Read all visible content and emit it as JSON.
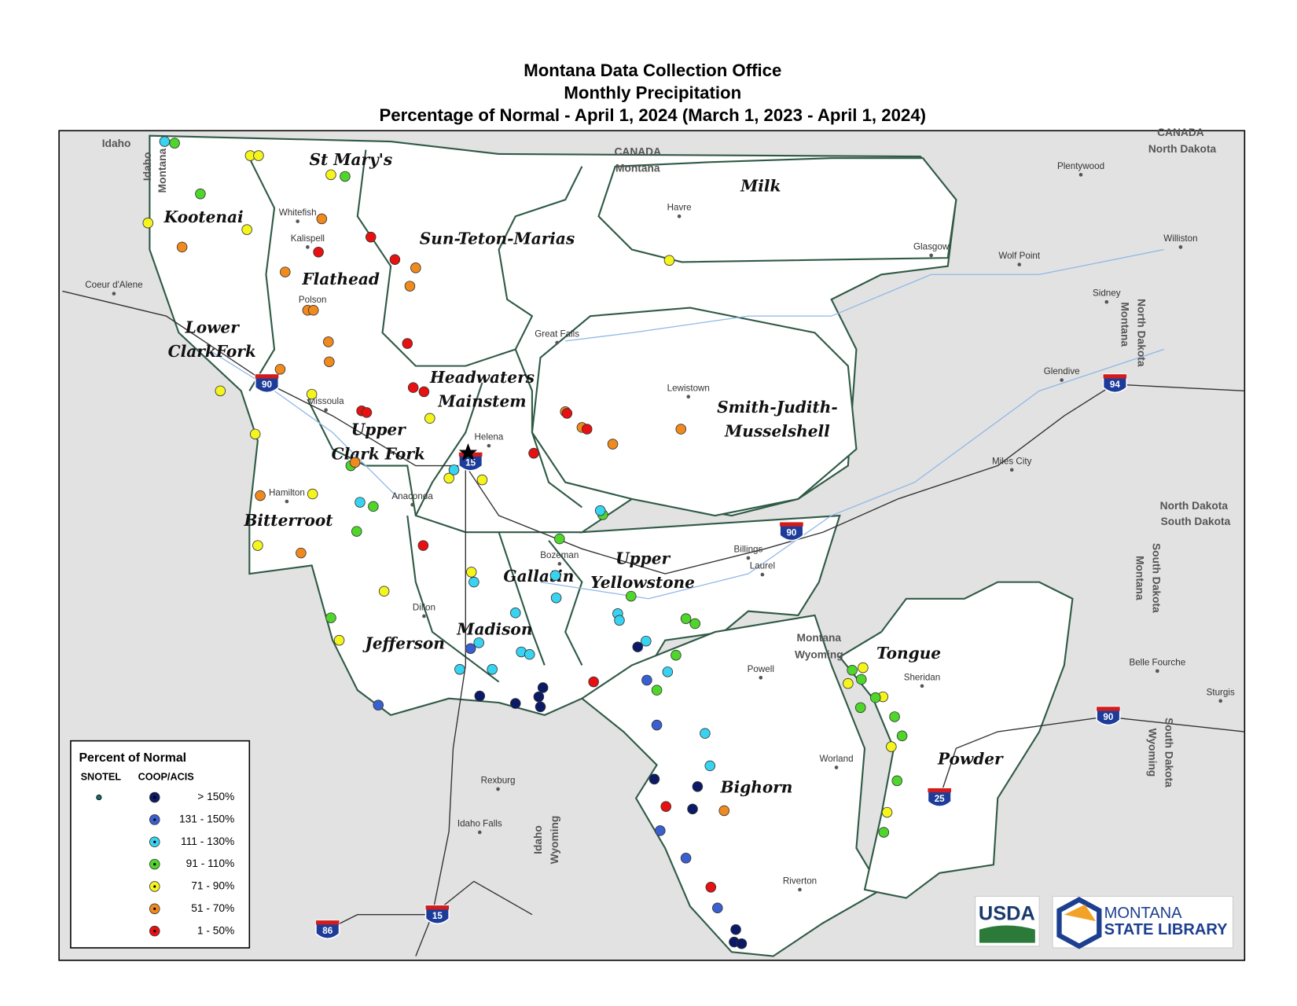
{
  "title": [
    "Montana Data Collection Office",
    "Monthly Precipitation",
    "Percentage of Normal - April 1, 2024 (March 1, 2023 - April 1, 2024)"
  ],
  "basins": [
    {
      "lines": [
        "Kootenai"
      ]
    },
    {
      "lines": [
        "St Mary's"
      ]
    },
    {
      "lines": [
        "Milk"
      ]
    },
    {
      "lines": [
        "Sun-Teton-Marias"
      ]
    },
    {
      "lines": [
        "Flathead"
      ]
    },
    {
      "lines": [
        "Lower",
        "ClarkFork"
      ]
    },
    {
      "lines": [
        "Headwaters",
        "Mainstem"
      ]
    },
    {
      "lines": [
        "Upper",
        "Clark Fork"
      ]
    },
    {
      "lines": [
        "Smith-Judith-",
        "Musselshell"
      ]
    },
    {
      "lines": [
        "Bitterroot"
      ]
    },
    {
      "lines": [
        "Upper",
        "Yellowstone"
      ]
    },
    {
      "lines": [
        "Gallatin"
      ]
    },
    {
      "lines": [
        "Madison"
      ]
    },
    {
      "lines": [
        "Jefferson"
      ]
    },
    {
      "lines": [
        "Tongue"
      ]
    },
    {
      "lines": [
        "Bighorn"
      ]
    },
    {
      "lines": [
        "Powder"
      ]
    }
  ],
  "places": [
    "Whitefish",
    "Kalispell",
    "Polson",
    "Missoula",
    "Hamilton",
    "Anaconda",
    "Helena",
    "Dillon",
    "Great Falls",
    "Havre",
    "Lewistown",
    "Glasgow",
    "Plentywood",
    "Wolf Point",
    "Williston",
    "Sidney",
    "Glendive",
    "Miles City",
    "Billings",
    "Laurel",
    "Bozeman",
    "Powell",
    "Sheridan",
    "Worland",
    "Riverton",
    "Belle Fourche",
    "Sturgis",
    "Rexburg",
    "Idaho Falls",
    "Coeur d'Alene"
  ],
  "regions": [
    "Idaho",
    "CANADA",
    "Montana",
    "CANADA",
    "North Dakota",
    "Idaho",
    "Montana",
    "North Dakota",
    "South Dakota",
    "Montana",
    "Wyoming",
    "Idaho",
    "Wyoming",
    "North Dakota",
    "Montana",
    "Montana",
    "South Dakota",
    "South Dakota",
    "Wyoming"
  ],
  "highways": [
    "90",
    "90",
    "90",
    "94",
    "15",
    "15",
    "25",
    "86"
  ],
  "legend": {
    "title": "Percent of Normal",
    "columns": [
      "SNOTEL",
      "COOP/ACIS"
    ],
    "classes": [
      {
        "label": "> 150%",
        "color": "#0b1a66"
      },
      {
        "label": "131 - 150%",
        "color": "#3a5fd0"
      },
      {
        "label": "111 - 130%",
        "color": "#38d3f0"
      },
      {
        "label": "91 - 110%",
        "color": "#4fd62a"
      },
      {
        "label": "71 - 90%",
        "color": "#f5f51e"
      },
      {
        "label": "51 - 70%",
        "color": "#f08a1e"
      },
      {
        "label": "1 - 50%",
        "color": "#e81010"
      }
    ]
  },
  "logos": {
    "usda": "USDA",
    "library": [
      "MONTANA",
      "STATE LIBRARY"
    ]
  }
}
